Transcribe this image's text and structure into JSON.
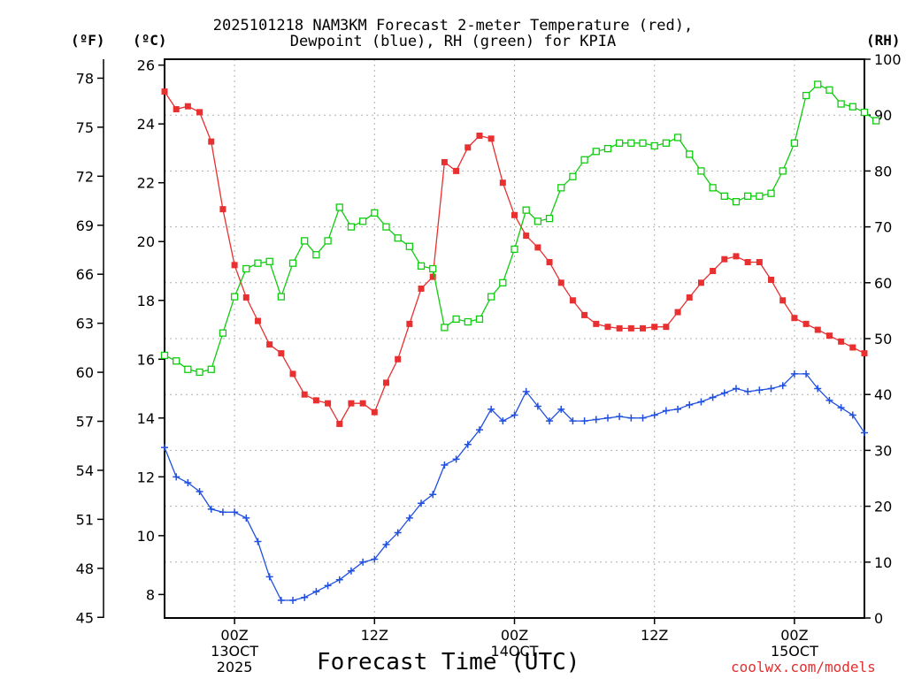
{
  "header": {
    "title_line1": "2025101218 NAM3KM Forecast 2-meter Temperature (red),",
    "title_line2": "Dewpoint (blue), RH (green) for KPIA",
    "unit_f": "(ºF)",
    "unit_c": "(ºC)",
    "unit_rh": "(RH)"
  },
  "footer": {
    "xlabel": "Forecast Time (UTC)",
    "credit": "coolwx.com/models"
  },
  "chart_data": {
    "type": "line",
    "title": "2025101218 NAM3KM Forecast 2-meter Temperature (red), Dewpoint (blue), RH (green) for KPIA",
    "xlabel": "Forecast Time (UTC)",
    "x_unit": "hours from 2025-10-12 18Z",
    "xlim": [
      0,
      60
    ],
    "x_ticks": [
      {
        "x": 6,
        "label": [
          "00Z",
          "13OCT",
          "2025"
        ]
      },
      {
        "x": 18,
        "label": [
          "12Z"
        ]
      },
      {
        "x": 30,
        "label": [
          "00Z",
          "14OCT"
        ]
      },
      {
        "x": 42,
        "label": [
          "12Z"
        ]
      },
      {
        "x": 54,
        "label": [
          "00Z",
          "15OCT"
        ]
      }
    ],
    "y_left_c": {
      "label": "(ºC)",
      "range": [
        7.2,
        26.2
      ],
      "ticks": [
        8,
        10,
        12,
        14,
        16,
        18,
        20,
        22,
        24,
        26
      ]
    },
    "y_left_f": {
      "label": "(ºF)",
      "ticks": [
        45,
        48,
        51,
        54,
        57,
        60,
        63,
        66,
        69,
        72,
        75,
        78
      ]
    },
    "y_right_rh": {
      "label": "(RH)",
      "range": [
        0,
        100
      ],
      "ticks": [
        0,
        10,
        20,
        30,
        40,
        50,
        60,
        70,
        80,
        90,
        100
      ]
    },
    "grid": true,
    "series": [
      {
        "name": "2-meter Temperature",
        "axis": "c",
        "color": "#e83030",
        "marker": "filled-square",
        "values": [
          25.1,
          24.5,
          24.6,
          24.4,
          23.4,
          21.1,
          19.2,
          18.1,
          17.3,
          16.5,
          16.2,
          15.5,
          14.8,
          14.6,
          14.5,
          13.8,
          14.5,
          14.5,
          14.2,
          15.2,
          16.0,
          17.2,
          18.4,
          18.8,
          22.7,
          22.4,
          23.2,
          23.6,
          23.5,
          22.0,
          20.9,
          20.2,
          19.8,
          19.3,
          18.6,
          18.0,
          17.5,
          17.2,
          17.1,
          17.05,
          17.05,
          17.05,
          17.1,
          17.1,
          17.6,
          18.1,
          18.6,
          19.0,
          19.4,
          19.5,
          19.3,
          19.3,
          18.7,
          18.0,
          17.4,
          17.2,
          17.0,
          16.8,
          16.6,
          16.4,
          16.2
        ]
      },
      {
        "name": "Dewpoint",
        "axis": "c",
        "color": "#2050e0",
        "marker": "plus",
        "values": [
          13.0,
          12.0,
          11.8,
          11.5,
          10.9,
          10.8,
          10.8,
          10.6,
          9.8,
          8.6,
          7.8,
          7.8,
          7.9,
          8.1,
          8.3,
          8.5,
          8.8,
          9.1,
          9.2,
          9.7,
          10.1,
          10.6,
          11.1,
          11.4,
          12.4,
          12.6,
          13.1,
          13.6,
          14.3,
          13.9,
          14.1,
          14.9,
          14.4,
          13.9,
          14.3,
          13.9,
          13.9,
          13.95,
          14.0,
          14.05,
          14.0,
          14.0,
          14.1,
          14.25,
          14.3,
          14.45,
          14.55,
          14.7,
          14.85,
          15.0,
          14.9,
          14.95,
          15.0,
          15.1,
          15.5,
          15.5,
          15.0,
          14.6,
          14.35,
          14.1,
          13.5
        ]
      },
      {
        "name": "RH",
        "axis": "rh",
        "color": "#10cc10",
        "marker": "open-square",
        "values": [
          47,
          46,
          44.5,
          44,
          44.5,
          51,
          57.5,
          62.5,
          63.5,
          63.8,
          57.5,
          63.5,
          67.5,
          65,
          67.5,
          73.5,
          70,
          71,
          72.5,
          70,
          68,
          66.5,
          63,
          62.5,
          52,
          53.5,
          53,
          53.5,
          57.5,
          60,
          66,
          73,
          71,
          71.5,
          77,
          79,
          82,
          83.5,
          84,
          85,
          85,
          85,
          84.5,
          85,
          86,
          83,
          80,
          77,
          75.5,
          74.5,
          75.5,
          75.5,
          76,
          80,
          85,
          93.5,
          95.5,
          94.5,
          92,
          91.5,
          90.5,
          89
        ]
      }
    ]
  }
}
